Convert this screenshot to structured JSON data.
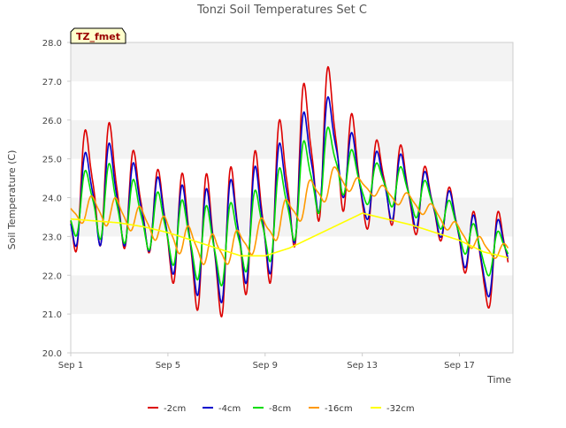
{
  "chart_data": {
    "type": "line",
    "title": "Tonzi Soil Temperatures Set C",
    "badge": "TZ_fmet",
    "xlabel": "Time",
    "ylabel": "Soil Temperature (C)",
    "xlim": [
      0,
      18.2
    ],
    "ylim": [
      20.0,
      28.0
    ],
    "yticks": [
      20.0,
      21.0,
      22.0,
      23.0,
      24.0,
      25.0,
      26.0,
      27.0,
      28.0
    ],
    "ytick_labels": [
      "20.0",
      "21.0",
      "22.0",
      "23.0",
      "24.0",
      "25.0",
      "26.0",
      "27.0",
      "28.0"
    ],
    "xticks": [
      0,
      4,
      8,
      12,
      16
    ],
    "xtick_labels": [
      "Sep 1",
      "Sep 5",
      "Sep 9",
      "Sep 13",
      "Sep 17"
    ],
    "grid": "horizontal bands",
    "legend_position": "bottom",
    "x_days_start": 0,
    "x_days_end": 18.0,
    "series": [
      {
        "name": "-2cm",
        "color": "#dd0000",
        "mean": [
          23.8,
          24.5,
          24.2,
          23.8,
          23.3,
          22.9,
          22.7,
          23.2,
          23.5,
          24.5,
          25.3,
          25.6,
          24.2,
          24.5,
          24.1,
          23.8,
          23.2,
          22.2,
          22.7
        ],
        "amp": [
          1.3,
          1.8,
          1.6,
          1.1,
          1.4,
          1.8,
          2.0,
          1.8,
          2.0,
          2.0,
          2.1,
          1.9,
          1.1,
          1.2,
          1.1,
          0.8,
          0.9,
          1.2,
          1.2
        ]
      },
      {
        "name": "-4cm",
        "color": "#0000cc",
        "mean": [
          23.6,
          24.2,
          24.0,
          23.7,
          23.3,
          22.9,
          22.7,
          23.2,
          23.4,
          24.2,
          25.0,
          25.4,
          24.2,
          24.4,
          24.1,
          23.8,
          23.2,
          22.3,
          22.7
        ],
        "amp": [
          0.9,
          1.5,
          1.3,
          1.0,
          1.2,
          1.4,
          1.6,
          1.5,
          1.6,
          1.6,
          1.6,
          1.3,
          0.8,
          1.0,
          0.9,
          0.7,
          0.8,
          1.0,
          0.9
        ]
      },
      {
        "name": "-8cm",
        "color": "#00dd00",
        "mean": [
          23.6,
          24.0,
          23.8,
          23.5,
          23.2,
          22.9,
          22.7,
          23.0,
          23.3,
          23.9,
          24.6,
          25.0,
          24.3,
          24.4,
          24.1,
          23.8,
          23.2,
          22.5,
          22.7
        ],
        "amp": [
          0.6,
          1.1,
          1.0,
          0.8,
          0.9,
          1.0,
          1.1,
          1.0,
          1.1,
          1.2,
          1.2,
          0.9,
          0.5,
          0.6,
          0.6,
          0.5,
          0.5,
          0.6,
          0.5
        ]
      },
      {
        "name": "-16cm",
        "color": "#ff9900",
        "mean": [
          23.6,
          23.7,
          23.6,
          23.4,
          23.1,
          22.8,
          22.6,
          22.8,
          23.1,
          23.6,
          24.1,
          24.5,
          24.3,
          24.1,
          23.9,
          23.6,
          23.1,
          22.7,
          22.6
        ],
        "amp": [
          0.25,
          0.4,
          0.4,
          0.35,
          0.4,
          0.45,
          0.45,
          0.4,
          0.45,
          0.45,
          0.45,
          0.35,
          0.15,
          0.2,
          0.2,
          0.2,
          0.2,
          0.25,
          0.2
        ],
        "phase_lag": 0.25
      },
      {
        "name": "-32cm",
        "color": "#ffff00",
        "x": [
          0,
          1,
          2,
          3,
          4,
          5,
          6,
          7,
          8,
          9,
          10,
          11,
          12,
          13,
          14,
          15,
          16,
          17,
          18
        ],
        "values": [
          23.45,
          23.4,
          23.35,
          23.25,
          23.1,
          22.9,
          22.7,
          22.5,
          22.5,
          22.7,
          23.0,
          23.3,
          23.6,
          23.45,
          23.3,
          23.1,
          22.9,
          22.6,
          22.45
        ]
      }
    ]
  }
}
